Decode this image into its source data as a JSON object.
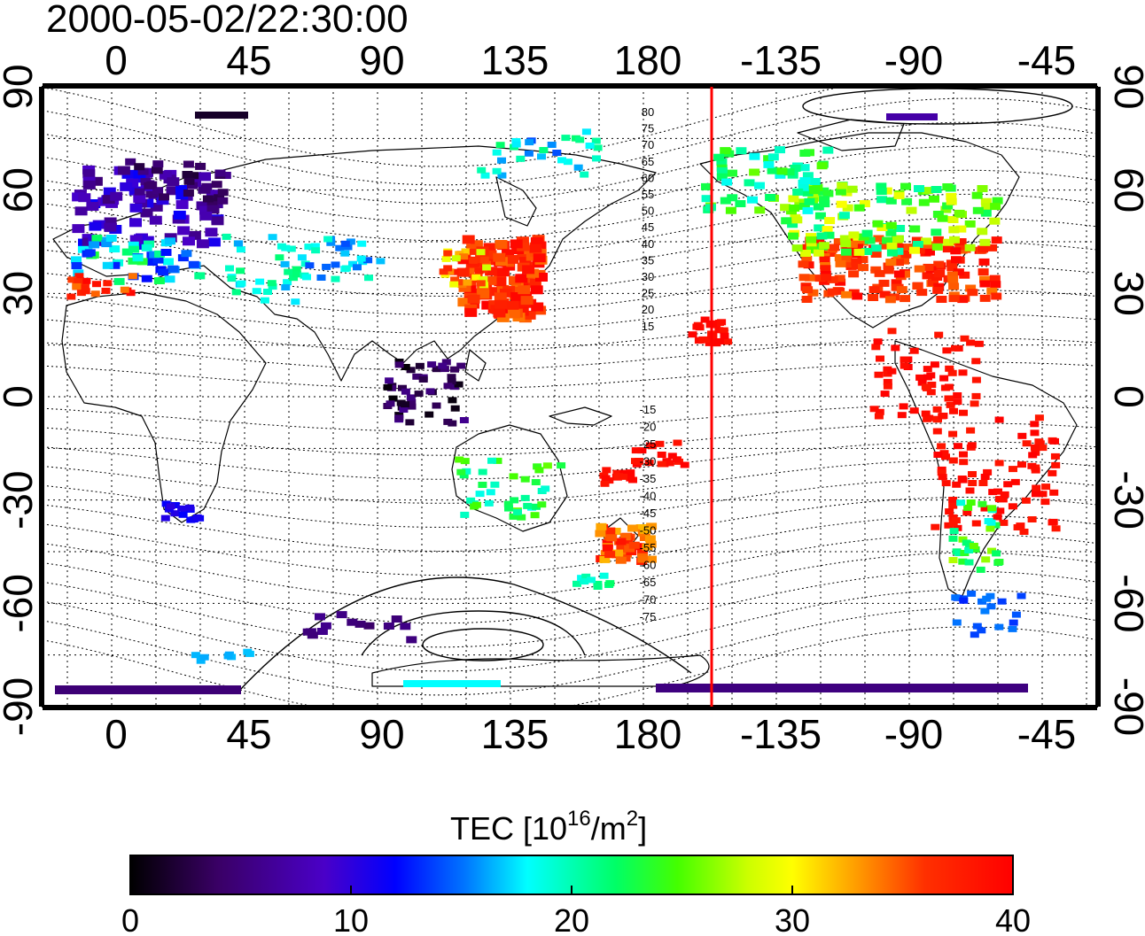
{
  "title": "2000-05-02/22:30:00",
  "x_ticks": [
    "0",
    "45",
    "90",
    "135",
    "180",
    "-135",
    "-90",
    "-45"
  ],
  "y_ticks": [
    "90",
    "60",
    "30",
    "0",
    "-30",
    "-60",
    "-90"
  ],
  "mlat_north": [
    "80",
    "75",
    "70",
    "65",
    "60",
    "55",
    "50",
    "45",
    "40",
    "35",
    "30",
    "25",
    "20",
    "15"
  ],
  "mlat_south": [
    "-15",
    "-20",
    "-25",
    "-30",
    "-35",
    "-40",
    "-45",
    "-50",
    "-55",
    "-60",
    "-65",
    "-70",
    "-75"
  ],
  "colorbar": {
    "label_main": "TEC  [10",
    "label_sup1": "16",
    "label_mid": "/m",
    "label_sup2": "2",
    "label_end": "]",
    "ticks": [
      "0",
      "10",
      "20",
      "30",
      "40"
    ],
    "range": [
      0,
      40
    ]
  },
  "colors": {
    "terminator_line": "#ff0000"
  }
}
